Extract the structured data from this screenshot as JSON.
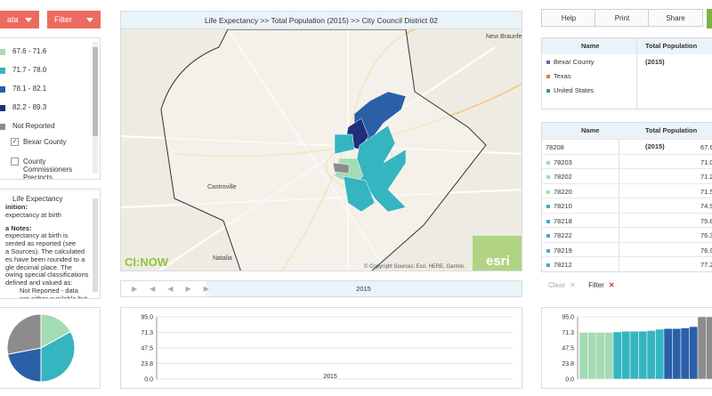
{
  "toolbar_left": {
    "data_button": "ata",
    "filter_button": "Filter"
  },
  "legend": {
    "items": [
      {
        "label": "67.6 - 71.6",
        "color": "#a3dbb4"
      },
      {
        "label": "71.7 - 78.0",
        "color": "#35b5c0"
      },
      {
        "label": "78.1 - 82.1",
        "color": "#2b5fa8"
      },
      {
        "label": "82.2 - 89.3",
        "color": "#1f2f7a"
      },
      {
        "label": "Not Reported",
        "color": "#8c8c8c"
      }
    ],
    "layers": [
      {
        "label": "Bexar County",
        "checked": true
      },
      {
        "label": "County Commissioners Precincts",
        "checked": false
      }
    ]
  },
  "info": {
    "title": "Life Expectancy",
    "lines": [
      "inition:",
      "expectancy at birth",
      "a Notes:",
      "expectancy at birth is",
      "sented as reported (see",
      "a Sources). The calculated",
      "es have been rounded to a",
      "gle decimal place. The",
      "owing special classifications",
      "defined and valued as:",
      "Not Reported - data",
      "are either available but"
    ]
  },
  "breadcrumb": "Life Expectancy >>  Total Population (2015) >>  City Council District 02",
  "map": {
    "labels": [
      {
        "text": "New Braunfel",
        "x": 545,
        "y": 42
      },
      {
        "text": "Castroville",
        "x": 232,
        "y": 211
      },
      {
        "text": "Natalia",
        "x": 238,
        "y": 291
      }
    ],
    "logo": "CI:NOW",
    "esri": "esri",
    "attribution": "© Copyright Sources: Esri, HERE, Garmin."
  },
  "timeline": {
    "year": "2015"
  },
  "tools": [
    "Help",
    "Print",
    "Share"
  ],
  "summary_table": {
    "headers": [
      "Name",
      "Total Population (2015)"
    ],
    "rows": [
      {
        "name": "Bexar County",
        "color": "#7b5ea7"
      },
      {
        "name": "Texas",
        "color": "#e07b39"
      },
      {
        "name": "United States",
        "color": "#2a9d8f"
      }
    ]
  },
  "zip_table": {
    "headers": [
      "Name",
      "Total Population (2015)"
    ],
    "rows": [
      {
        "name": "78208",
        "value": "67.6",
        "color": null
      },
      {
        "name": "78203",
        "value": "71.0",
        "color": "#a3dbb4"
      },
      {
        "name": "78202",
        "value": "71.2",
        "color": "#a3dbb4"
      },
      {
        "name": "78220",
        "value": "71.5",
        "color": "#a3dbb4"
      },
      {
        "name": "78210",
        "value": "74.9",
        "color": "#35b5c0"
      },
      {
        "name": "78218",
        "value": "75.8",
        "color": "#35b5c0"
      },
      {
        "name": "78222",
        "value": "76.3",
        "color": "#35b5c0"
      },
      {
        "name": "78219",
        "value": "76.9",
        "color": "#35b5c0"
      },
      {
        "name": "78212",
        "value": "77.2",
        "color": "#35b5c0"
      }
    ]
  },
  "filter_bar": {
    "clear": "Clear",
    "filter": "Filter"
  },
  "pie_chart": {
    "type": "pie",
    "values": [
      17,
      33,
      22,
      28
    ],
    "colors": [
      "#a3dbb4",
      "#35b5c0",
      "#2b5fa8",
      "#8c8c8c"
    ]
  },
  "time_chart": {
    "type": "line",
    "categories": [
      "2015"
    ],
    "ylim": [
      0,
      95
    ],
    "yticks": [
      {
        "value": 0,
        "label": "0.0"
      },
      23.8,
      47.5,
      71.3,
      {
        "value": 95,
        "label": "95.0"
      }
    ]
  },
  "bar_chart": {
    "type": "bar",
    "ylim": [
      0,
      95
    ],
    "yticks": [
      {
        "value": 0,
        "label": "0.0"
      },
      23.8,
      47.5,
      71.3,
      {
        "value": 95,
        "label": "95.0"
      }
    ],
    "values": [
      71,
      71,
      71,
      71,
      72,
      73,
      73,
      73,
      74,
      76,
      77,
      77,
      78,
      80,
      95,
      95
    ],
    "colors": [
      "#a3dbb4",
      "#a3dbb4",
      "#a3dbb4",
      "#a3dbb4",
      "#35b5c0",
      "#35b5c0",
      "#35b5c0",
      "#35b5c0",
      "#35b5c0",
      "#35b5c0",
      "#2b5fa8",
      "#2b5fa8",
      "#2b5fa8",
      "#2b5fa8",
      "#8c8c8c",
      "#8c8c8c"
    ]
  }
}
